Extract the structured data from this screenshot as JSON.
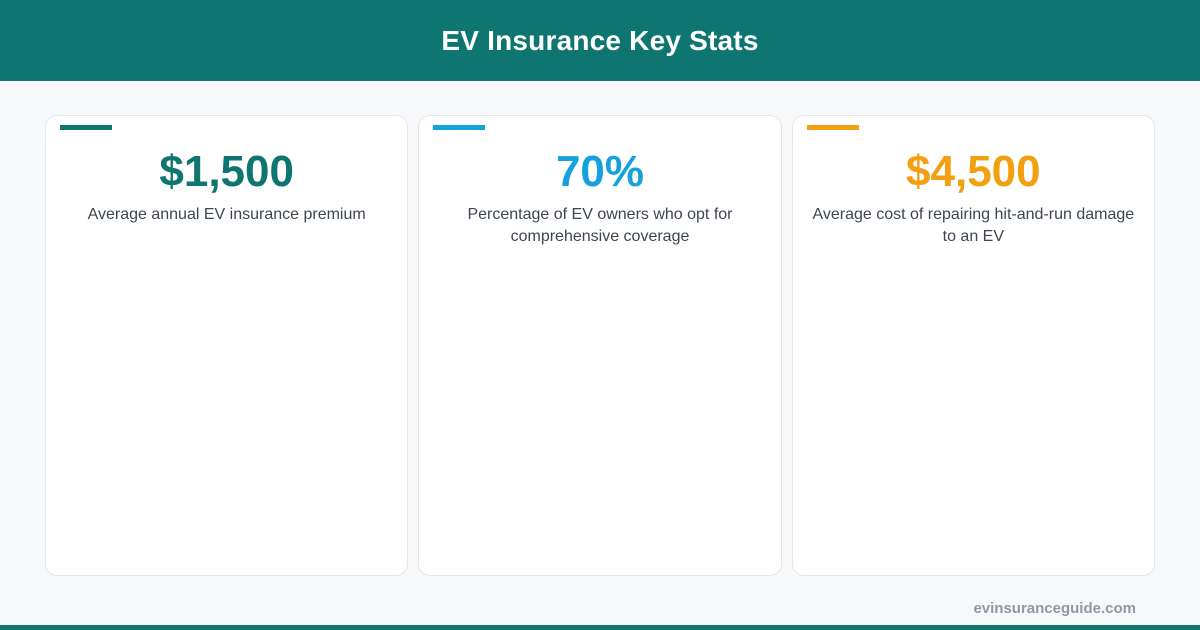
{
  "header": {
    "title": "EV Insurance Key Stats"
  },
  "stats": [
    {
      "value": "$1,500",
      "description": "Average annual EV insurance premium",
      "color": "#0f7570"
    },
    {
      "value": "70%",
      "description": "Percentage of EV owners who opt for comprehensive coverage",
      "color": "#15a1dc"
    },
    {
      "value": "$4,500",
      "description": "Average cost of repairing hit-and-run damage to an EV",
      "color": "#f29f12"
    }
  ],
  "footer": {
    "site": "evinsuranceguide.com"
  },
  "colors": {
    "brand": "#0f7570",
    "background": "#f7f8fa",
    "text": "#3d4650",
    "muted": "#8f98a3"
  }
}
